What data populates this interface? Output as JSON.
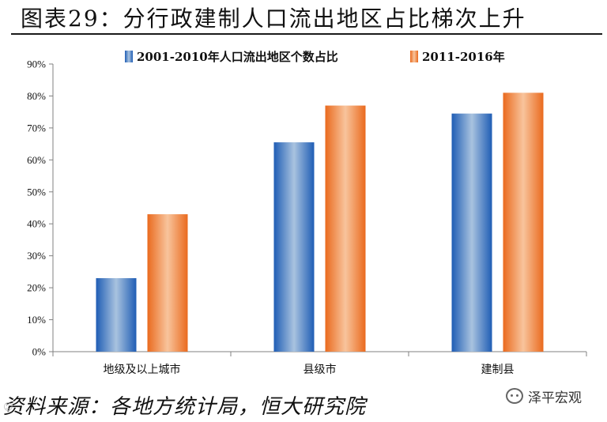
{
  "header": {
    "title": "图表29：分行政建制人口流出地区占比梯次上升"
  },
  "source": "资料来源：各地方统计局，恒大研究院",
  "watermark": {
    "label": "泽平宏观",
    "icon": "wechat-icon"
  },
  "chart_data": {
    "type": "bar",
    "categories": [
      "地级及以上城市",
      "县级市",
      "建制县"
    ],
    "series": [
      {
        "name": "2001-2010年人口流出地区个数占比",
        "values": [
          0.23,
          0.655,
          0.745
        ],
        "color": "#3b74c0"
      },
      {
        "name": "2011-2016年",
        "values": [
          0.43,
          0.77,
          0.81
        ],
        "color": "#ee7a35"
      }
    ],
    "ylim": [
      0,
      0.9
    ],
    "yticks": [
      "0%",
      "10%",
      "20%",
      "30%",
      "40%",
      "50%",
      "60%",
      "70%",
      "80%",
      "90%"
    ],
    "grid": false,
    "legend_position": "top-center"
  }
}
